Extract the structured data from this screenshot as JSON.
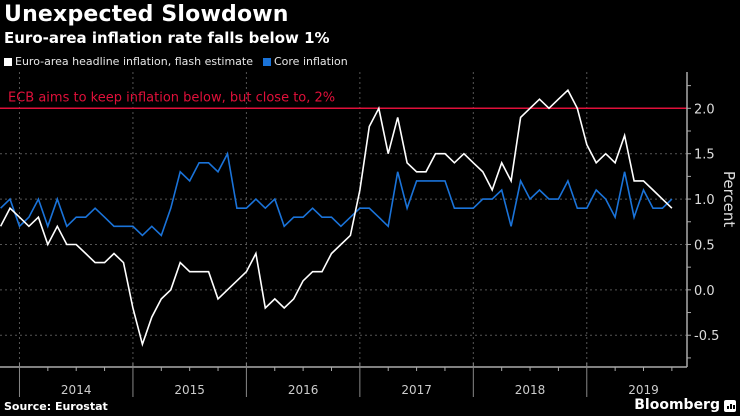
{
  "header": {
    "title": "Unexpected Slowdown",
    "subtitle": "Euro-area inflation rate falls below 1%"
  },
  "footer": {
    "source": "Source: Eurostat",
    "brand": "Bloomberg"
  },
  "colors": {
    "background": "#000000",
    "headline": "#ffffff",
    "core": "#1a73d9",
    "target": "#e0103a",
    "grid": "#555555"
  },
  "chart_data": {
    "type": "line",
    "title": "Unexpected Slowdown",
    "subtitle": "Euro-area inflation rate falls below 1%",
    "xlabel": "",
    "ylabel": "Percent",
    "ylim": [
      -0.85,
      2.4
    ],
    "yticks": [
      -0.5,
      0.0,
      0.5,
      1.0,
      1.5,
      2.0
    ],
    "ytick_labels": [
      "-0.5",
      "0.0",
      "0.5",
      "1.0",
      "1.5",
      "2.0"
    ],
    "x_unit": "months since Jan 2014",
    "xlim": [
      -2.06,
      70.6
    ],
    "year_labels": [
      "2014",
      "2015",
      "2016",
      "2017",
      "2018",
      "2019"
    ],
    "grid": true,
    "legend_position": "top-left",
    "x": [
      -2,
      -1,
      0,
      1,
      2,
      3,
      4,
      5,
      6,
      7,
      8,
      9,
      10,
      11,
      12,
      13,
      14,
      15,
      16,
      17,
      18,
      19,
      20,
      21,
      22,
      23,
      24,
      25,
      26,
      27,
      28,
      29,
      30,
      31,
      32,
      33,
      34,
      35,
      36,
      37,
      38,
      39,
      40,
      41,
      42,
      43,
      44,
      45,
      46,
      47,
      48,
      49,
      50,
      51,
      52,
      53,
      54,
      55,
      56,
      57,
      58,
      59,
      60,
      61,
      62,
      63,
      64,
      65,
      66,
      67,
      68,
      69
    ],
    "series": [
      {
        "name": "Euro-area headline inflation, flash estimate",
        "color": "#ffffff",
        "values": [
          0.7,
          0.9,
          0.8,
          0.7,
          0.8,
          0.5,
          0.7,
          0.5,
          0.5,
          0.4,
          0.3,
          0.3,
          0.4,
          0.3,
          -0.2,
          -0.6,
          -0.3,
          -0.1,
          0.0,
          0.3,
          0.2,
          0.2,
          0.2,
          -0.1,
          0.0,
          0.1,
          0.2,
          0.4,
          -0.2,
          -0.1,
          -0.2,
          -0.1,
          0.1,
          0.2,
          0.2,
          0.4,
          0.5,
          0.6,
          1.1,
          1.8,
          2.0,
          1.5,
          1.9,
          1.4,
          1.3,
          1.3,
          1.5,
          1.5,
          1.4,
          1.5,
          1.4,
          1.3,
          1.1,
          1.4,
          1.2,
          1.9,
          2.0,
          2.1,
          2.0,
          2.1,
          2.2,
          2.0,
          1.6,
          1.4,
          1.5,
          1.4,
          1.7,
          1.2,
          1.2,
          1.1,
          1.0,
          0.9
        ]
      },
      {
        "name": "Core inflation",
        "color": "#1a73d9",
        "values": [
          0.9,
          1.0,
          0.7,
          0.8,
          1.0,
          0.7,
          1.0,
          0.7,
          0.8,
          0.8,
          0.9,
          0.8,
          0.7,
          0.7,
          0.7,
          0.6,
          0.7,
          0.6,
          0.9,
          1.3,
          1.2,
          1.4,
          1.4,
          1.3,
          1.5,
          0.9,
          0.9,
          1.0,
          0.9,
          1.0,
          0.7,
          0.8,
          0.8,
          0.9,
          0.8,
          0.8,
          0.7,
          0.8,
          0.9,
          0.9,
          0.8,
          0.7,
          1.3,
          0.9,
          1.2,
          1.2,
          1.2,
          1.2,
          0.9,
          0.9,
          0.9,
          1.0,
          1.0,
          1.1,
          0.7,
          1.2,
          1.0,
          1.1,
          1.0,
          1.0,
          1.2,
          0.9,
          0.9,
          1.1,
          1.0,
          0.8,
          1.3,
          0.8,
          1.1,
          0.9,
          0.9,
          1.0
        ]
      }
    ],
    "annotations": [
      {
        "text": "ECB aims to keep inflation below, but close to, 2%",
        "y": 2.0,
        "color": "#e0103a"
      }
    ]
  }
}
